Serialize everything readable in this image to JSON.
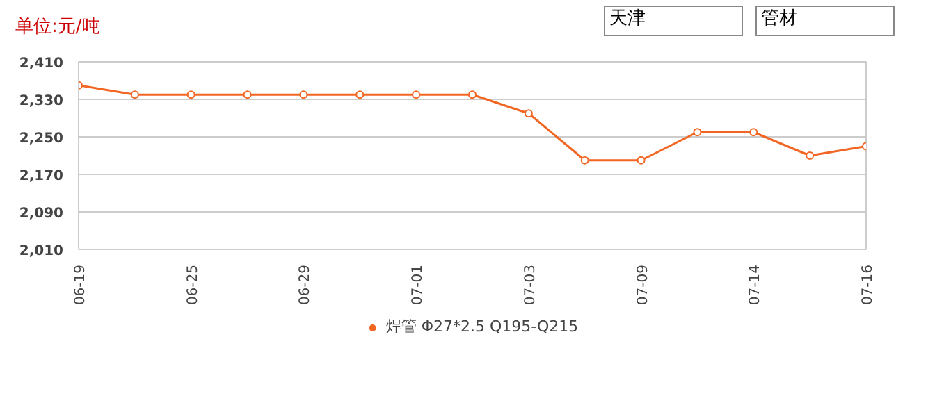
{
  "chart_data": {
    "type": "line",
    "title": "单位:元/吨",
    "annotations": [
      "天津",
      "管材"
    ],
    "categories": [
      "06-19",
      null,
      "06-25",
      null,
      "06-29",
      null,
      "07-01",
      null,
      "07-03",
      null,
      "07-09",
      null,
      "07-14",
      null,
      "07-16"
    ],
    "series": [
      {
        "name": "焊管 Φ27*2.5 Q195-Q215",
        "color": "#f26522",
        "values": [
          2360,
          2340,
          2340,
          2340,
          2340,
          2340,
          2340,
          2340,
          2300,
          2200,
          2200,
          2260,
          2260,
          2210,
          2230
        ]
      }
    ],
    "ylim": [
      2010,
      2410
    ],
    "yticks": [
      {
        "value": 2010,
        "label": "2,010"
      },
      {
        "value": 2090,
        "label": "2,090"
      },
      {
        "value": 2170,
        "label": "2,170"
      },
      {
        "value": 2250,
        "label": "2,250"
      },
      {
        "value": 2330,
        "label": "2,330"
      },
      {
        "value": 2410,
        "label": "2,410"
      }
    ],
    "grid": "y",
    "legend": "bottom",
    "marker": "circle",
    "line_style": "solid"
  }
}
